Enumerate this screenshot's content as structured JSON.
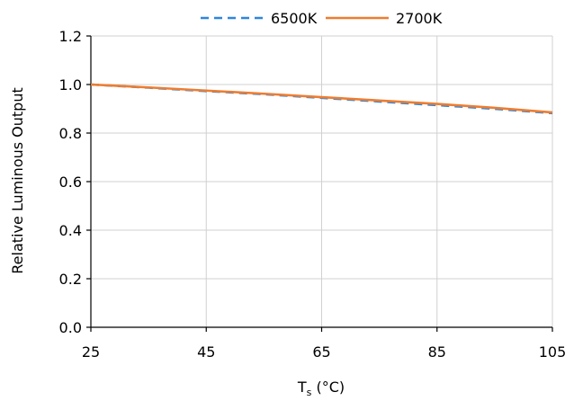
{
  "chart_data": {
    "type": "line",
    "title": "",
    "xlabel_main": "T",
    "xlabel_sub": "s",
    "xlabel_rest": " (°C)",
    "ylabel": "Relative Luminous Output",
    "xlim": [
      25,
      105
    ],
    "ylim": [
      0.0,
      1.2
    ],
    "xticks": [
      25,
      45,
      65,
      85,
      105
    ],
    "yticks": [
      0.0,
      0.2,
      0.4,
      0.6,
      0.8,
      1.0,
      1.2
    ],
    "ytick_labels": [
      "0.0",
      "0.2",
      "0.4",
      "0.6",
      "0.8",
      "1.0",
      "1.2"
    ],
    "xtick_labels": [
      "25",
      "45",
      "65",
      "85",
      "105"
    ],
    "grid": true,
    "legend_position": "top-center",
    "series": [
      {
        "name": "6500K",
        "color": "#2E86DE",
        "dash": "dashed",
        "x": [
          25,
          35,
          45,
          55,
          65,
          75,
          85,
          95,
          105
        ],
        "y": [
          1.0,
          0.987,
          0.973,
          0.96,
          0.945,
          0.93,
          0.915,
          0.9,
          0.882
        ]
      },
      {
        "name": "2700K",
        "color": "#ED7D31",
        "dash": "solid",
        "x": [
          25,
          35,
          45,
          55,
          65,
          75,
          85,
          95,
          105
        ],
        "y": [
          1.0,
          0.988,
          0.975,
          0.962,
          0.948,
          0.934,
          0.92,
          0.904,
          0.885
        ]
      }
    ]
  }
}
